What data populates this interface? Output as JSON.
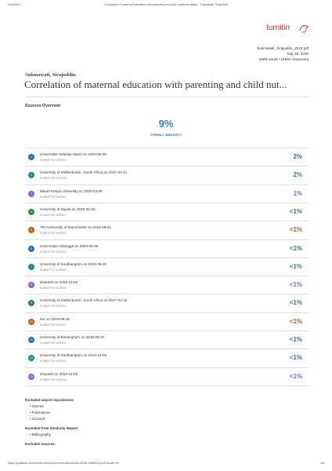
{
  "header": {
    "date": "4/16/2021",
    "title": "Correlation of maternal education with parenting and child nutritional status - Sukmawati, Sirajuddin"
  },
  "logo": "turnitin",
  "meta": {
    "file": "Sukmawati_Sirajuddin_2019.pdf",
    "date": "Sep 29, 2020",
    "counts": "3099 words / 15592 characters"
  },
  "author": "Sukmawati, Sirajuddin",
  "doc_title": "Correlation of maternal education with parenting and child nut...",
  "sources": {
    "heading": "Sources Overview",
    "overall": "9%",
    "overall_label": "OVERALL SIMILARITY",
    "items": [
      {
        "number": "1",
        "name": "Universitas Sebelas Maret on 2020-06-26",
        "type": "SUBMITTED WORKS",
        "percent": "2%",
        "color": "#2b6cb5"
      },
      {
        "number": "2",
        "name": "University of Stellenbosch, South Africa on 2017-04-21",
        "type": "SUBMITTED WORKS",
        "percent": "2%",
        "color": "#1b8796"
      },
      {
        "number": "3",
        "name": "Mount Kenya University on 2020-03-06",
        "type": "SUBMITTED WORKS",
        "percent": "1%",
        "color": "#8f62c9"
      },
      {
        "number": "4",
        "name": "University of Diyala on 2020-02-16",
        "type": "SUBMITTED WORKS",
        "percent": "<1%",
        "color": "#2f8a3a"
      },
      {
        "number": "5",
        "name": "The University of Manchester on 2015-09-01",
        "type": "SUBMITTED WORKS",
        "percent": "<1%",
        "color": "#c2610c"
      },
      {
        "number": "6",
        "name": "Universitas Airlangga on 2020-06-02",
        "type": "SUBMITTED WORKS",
        "percent": "<1%",
        "color": "#2b6cb5"
      },
      {
        "number": "7",
        "name": "University of Southampton on 2016-09-20",
        "type": "SUBMITTED WORKS",
        "percent": "<1%",
        "color": "#1b8796"
      },
      {
        "number": "8",
        "name": "shasselt on 2019-12-03",
        "type": "SUBMITTED WORKS",
        "percent": "<1%",
        "color": "#8f62c9"
      },
      {
        "number": "9",
        "name": "University of Stellenbosch, South Africa on 2017-01-15",
        "type": "SUBMITTED WORKS",
        "percent": "<1%",
        "color": "#2f8a3a"
      },
      {
        "number": "10",
        "name": "eur on 2019-09-26",
        "type": "SUBMITTED WORKS",
        "percent": "<1%",
        "color": "#c2610c"
      },
      {
        "number": "11",
        "name": "University of Birmingham on 2018-09-07",
        "type": "SUBMITTED WORKS",
        "percent": "<1%",
        "color": "#2b6cb5"
      },
      {
        "number": "12",
        "name": "University of Southampton on 2010-12-09",
        "type": "SUBMITTED WORKS",
        "percent": "<1%",
        "color": "#1b8796"
      },
      {
        "number": "13",
        "name": "shasselt on 2019-12-03",
        "type": "SUBMITTED WORKS",
        "percent": "<1%",
        "color": "#8f62c9"
      }
    ]
  },
  "excluded": [
    {
      "heading": "Excluded search repositories:",
      "items": [
        "Internet",
        "Publications",
        "Crossref"
      ]
    },
    {
      "heading": "Excluded from Similarity Report:",
      "items": [
        "Bibliography"
      ]
    },
    {
      "heading": "Excluded sources:",
      "items": []
    }
  ],
  "footer": {
    "url": "https://pollaktas-mhs.turnitin.com/viewer/submissions/oid:28284:2964810/print?locale=en",
    "page": "1/8"
  }
}
